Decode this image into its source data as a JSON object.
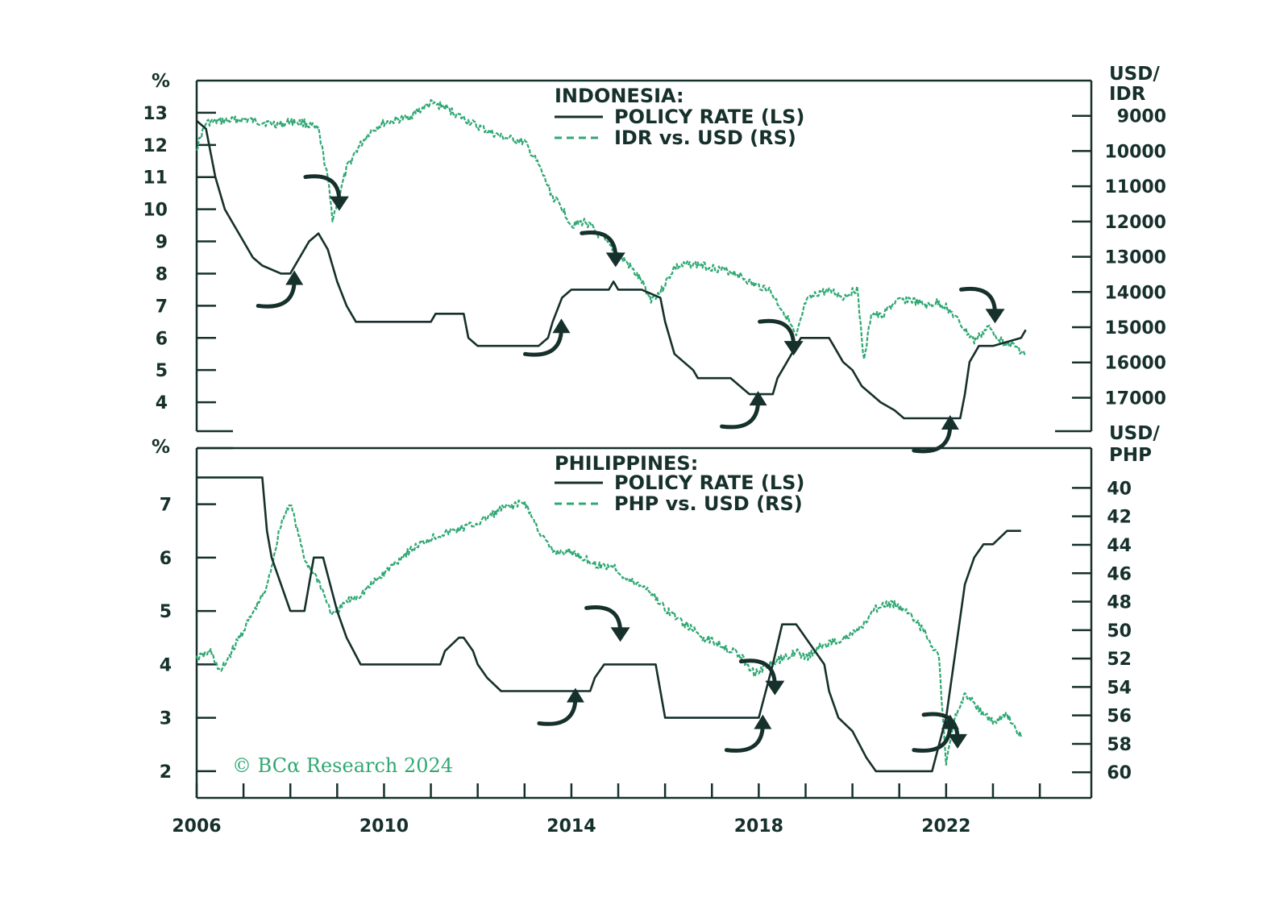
{
  "colors": {
    "axis": "#16302b",
    "policy_rate": "#16302b",
    "currency": "#2fa873",
    "arrow": "#16302b",
    "copyright": "#2fa873"
  },
  "copyright": "© BCα Research 2024",
  "x_axis": {
    "range": [
      2006,
      2025.1
    ],
    "ticks": [
      2006,
      2007,
      2008,
      2009,
      2010,
      2011,
      2012,
      2013,
      2014,
      2015,
      2016,
      2017,
      2018,
      2019,
      2020,
      2021,
      2022,
      2023,
      2024
    ],
    "labels": [
      "2006",
      "2010",
      "2014",
      "2018",
      "2022"
    ],
    "label_values": [
      2006,
      2010,
      2014,
      2018,
      2022
    ]
  },
  "chart_data": [
    {
      "type": "line",
      "title": "INDONESIA:",
      "legend": [
        "POLICY RATE (LS)",
        "IDR vs. USD (RS)"
      ],
      "left_unit": "%",
      "right_unit_line1": "USD/",
      "right_unit_line2": "IDR",
      "left_ylim": [
        3.1,
        14.0
      ],
      "left_ticks": [
        "4",
        "5",
        "6",
        "7",
        "8",
        "9",
        "10",
        "11",
        "12",
        "13"
      ],
      "right_ylim": [
        17950,
        8000
      ],
      "right_ticks": [
        "9000",
        "10000",
        "11000",
        "12000",
        "13000",
        "14000",
        "15000",
        "16000",
        "17000"
      ],
      "policy_rate": {
        "name": "POLICY RATE (LS)",
        "x": [
          2006.0,
          2006.2,
          2006.4,
          2006.6,
          2006.8,
          2007.0,
          2007.2,
          2007.4,
          2007.8,
          2008.0,
          2008.4,
          2008.6,
          2008.8,
          2009.0,
          2009.2,
          2009.4,
          2010.0,
          2011.0,
          2011.1,
          2011.7,
          2011.8,
          2012.0,
          2013.3,
          2013.5,
          2013.6,
          2013.8,
          2014.0,
          2014.8,
          2014.9,
          2015.0,
          2015.5,
          2015.9,
          2016.0,
          2016.2,
          2016.4,
          2016.6,
          2016.7,
          2017.4,
          2017.6,
          2017.8,
          2018.3,
          2018.4,
          2018.6,
          2018.9,
          2019.0,
          2019.5,
          2019.6,
          2019.7,
          2019.8,
          2020.0,
          2020.2,
          2020.4,
          2020.6,
          2020.9,
          2021.1,
          2022.3,
          2022.4,
          2022.5,
          2022.6,
          2022.7,
          2022.9,
          2023.0,
          2023.6,
          2023.7
        ],
        "y": [
          12.75,
          12.5,
          11.0,
          10.0,
          9.5,
          9.0,
          8.5,
          8.25,
          8.0,
          8.0,
          9.0,
          9.25,
          8.75,
          7.75,
          7.0,
          6.5,
          6.5,
          6.5,
          6.75,
          6.75,
          6.0,
          5.75,
          5.75,
          6.0,
          6.5,
          7.25,
          7.5,
          7.5,
          7.75,
          7.5,
          7.5,
          7.25,
          6.5,
          5.5,
          5.25,
          5.0,
          4.75,
          4.75,
          4.5,
          4.25,
          4.25,
          4.75,
          5.25,
          6.0,
          6.0,
          6.0,
          5.75,
          5.5,
          5.25,
          5.0,
          4.5,
          4.25,
          4.0,
          3.75,
          3.5,
          3.5,
          4.25,
          5.25,
          5.5,
          5.75,
          5.75,
          5.75,
          6.0,
          6.25
        ]
      },
      "currency": {
        "name": "IDR vs. USD (RS)",
        "x": [
          2006.0,
          2006.2,
          2006.5,
          2007.0,
          2007.5,
          2007.8,
          2008.0,
          2008.3,
          2008.6,
          2008.8,
          2008.9,
          2009.0,
          2009.2,
          2009.4,
          2009.7,
          2010.0,
          2010.5,
          2011.0,
          2011.3,
          2011.6,
          2012.0,
          2012.5,
          2013.0,
          2013.3,
          2013.6,
          2013.8,
          2014.0,
          2014.3,
          2014.6,
          2014.9,
          2015.2,
          2015.5,
          2015.7,
          2015.9,
          2016.2,
          2016.6,
          2017.0,
          2017.5,
          2017.9,
          2018.2,
          2018.6,
          2018.8,
          2019.0,
          2019.3,
          2019.6,
          2019.8,
          2020.1,
          2020.25,
          2020.4,
          2020.6,
          2020.9,
          2021.2,
          2021.6,
          2021.8,
          2022.0,
          2022.3,
          2022.6,
          2022.9,
          2023.2,
          2023.5,
          2023.7
        ],
        "y": [
          9900,
          9200,
          9150,
          9100,
          9200,
          9250,
          9150,
          9200,
          9400,
          10800,
          11900,
          11500,
          10500,
          10000,
          9450,
          9200,
          9050,
          8650,
          8750,
          9000,
          9300,
          9600,
          9750,
          10400,
          11300,
          11600,
          12100,
          12000,
          12400,
          12800,
          13200,
          13700,
          14200,
          14000,
          13300,
          13200,
          13300,
          13450,
          13800,
          13900,
          14700,
          15300,
          14300,
          14000,
          14000,
          14150,
          13900,
          16000,
          14600,
          14700,
          14300,
          14200,
          14400,
          14300,
          14400,
          14900,
          15400,
          15000,
          15400,
          15550,
          15800
        ]
      },
      "annotations": {
        "up_arrows": [
          2008.0,
          2013.7,
          2017.9,
          2022.0
        ],
        "down_arrows": [
          2008.7,
          2014.6,
          2018.4,
          2022.7
        ]
      }
    },
    {
      "type": "line",
      "title": "PHILIPPINES:",
      "legend": [
        "POLICY RATE (LS)",
        "PHP vs. USD (RS)"
      ],
      "left_unit": "%",
      "right_unit_line1": "USD/",
      "right_unit_line2": "PHP",
      "left_ylim": [
        1.5,
        8.05
      ],
      "left_ticks": [
        "2",
        "3",
        "4",
        "5",
        "6",
        "7"
      ],
      "right_ylim": [
        61.8,
        37.2
      ],
      "right_ticks": [
        "40",
        "42",
        "44",
        "46",
        "48",
        "50",
        "52",
        "54",
        "56",
        "58",
        "60"
      ],
      "policy_rate": {
        "name": "POLICY RATE (LS)",
        "x": [
          2006.0,
          2007.4,
          2007.5,
          2007.6,
          2008.0,
          2008.3,
          2008.5,
          2008.7,
          2009.0,
          2009.2,
          2009.5,
          2011.2,
          2011.3,
          2011.6,
          2011.7,
          2011.9,
          2012.0,
          2012.2,
          2012.5,
          2012.8,
          2014.4,
          2014.5,
          2014.7,
          2015.0,
          2015.5,
          2015.8,
          2016.0,
          2017.5,
          2018.0,
          2018.3,
          2018.5,
          2018.8,
          2019.0,
          2019.4,
          2019.5,
          2019.7,
          2020.0,
          2020.3,
          2020.5,
          2021.7,
          2022.0,
          2022.2,
          2022.4,
          2022.6,
          2022.8,
          2023.0,
          2023.3,
          2023.6
        ],
        "y": [
          7.5,
          7.5,
          6.5,
          6.0,
          5.0,
          5.0,
          6.0,
          6.0,
          5.0,
          4.5,
          4.0,
          4.0,
          4.25,
          4.5,
          4.5,
          4.25,
          4.0,
          3.75,
          3.5,
          3.5,
          3.5,
          3.75,
          4.0,
          4.0,
          4.0,
          4.0,
          3.0,
          3.0,
          3.0,
          4.0,
          4.75,
          4.75,
          4.5,
          4.0,
          3.5,
          3.0,
          2.75,
          2.25,
          2.0,
          2.0,
          3.0,
          4.25,
          5.5,
          6.0,
          6.25,
          6.25,
          6.5,
          6.5
        ]
      },
      "currency": {
        "name": "PHP vs. USD (RS)",
        "x": [
          2006.0,
          2006.3,
          2006.5,
          2007.0,
          2007.5,
          2007.8,
          2008.0,
          2008.3,
          2008.6,
          2008.9,
          2009.2,
          2009.5,
          2010.0,
          2010.5,
          2011.0,
          2011.5,
          2012.0,
          2012.5,
          2013.0,
          2013.3,
          2013.6,
          2014.0,
          2014.3,
          2014.6,
          2014.9,
          2015.2,
          2015.6,
          2016.0,
          2016.4,
          2016.8,
          2017.2,
          2017.6,
          2017.9,
          2018.2,
          2018.5,
          2018.8,
          2019.0,
          2019.3,
          2019.6,
          2019.9,
          2020.2,
          2020.5,
          2020.7,
          2020.9,
          2021.2,
          2021.5,
          2021.7,
          2021.85,
          2022.0,
          2022.2,
          2022.4,
          2022.7,
          2023.0,
          2023.3,
          2023.6
        ],
        "y": [
          52.0,
          51.5,
          53.0,
          50.0,
          47.0,
          42.5,
          41.0,
          45.0,
          46.5,
          49.0,
          48.0,
          47.5,
          46.0,
          44.5,
          43.5,
          43.0,
          42.5,
          41.5,
          41.0,
          43.0,
          44.5,
          44.5,
          45.0,
          45.5,
          45.5,
          46.5,
          47.0,
          48.5,
          49.5,
          50.5,
          51.0,
          51.8,
          53.0,
          52.5,
          52.0,
          51.5,
          52.0,
          51.2,
          50.8,
          50.5,
          49.8,
          48.5,
          48.2,
          48.2,
          48.7,
          50.0,
          51.0,
          52.0,
          59.5,
          56.0,
          54.5,
          55.5,
          56.5,
          56.0,
          57.5
        ]
      },
      "annotations": {
        "up_arrows": [
          2014.0,
          2018.0,
          2022.0
        ],
        "down_arrows": [
          2014.7,
          2018.0,
          2021.9
        ]
      }
    }
  ]
}
